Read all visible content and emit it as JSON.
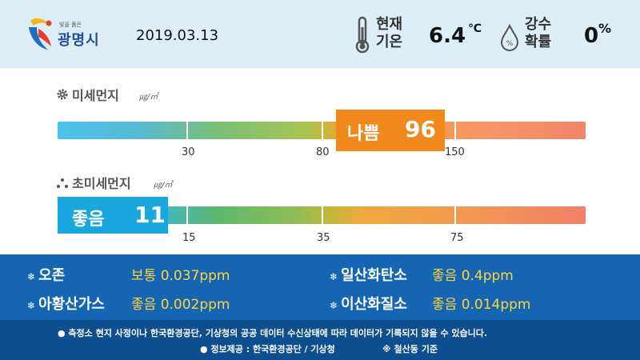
{
  "header": {
    "logo_tagline": "빛을 품은",
    "logo_name": "광명시",
    "date": "2019.03.13",
    "temperature": {
      "label_line1": "현재",
      "label_line2": "기온",
      "value": "6.4",
      "unit": "℃",
      "icon": "thermometer-icon"
    },
    "precipitation": {
      "label_line1": "강수",
      "label_line2": "확률",
      "value": "0",
      "unit": "%",
      "icon": "raindrop-percent-icon"
    }
  },
  "pm10": {
    "title": "미세먼지",
    "unit": "㎍/㎥",
    "icon": "gear-icon",
    "status": "나쁨",
    "value": "96",
    "ticks": [
      "30",
      "80",
      "150"
    ],
    "status_color": "#f08a1c"
  },
  "pm25": {
    "title": "초미세먼지",
    "unit": "㎍/㎥",
    "icon": "dots-icon",
    "status": "좋음",
    "value": "11",
    "ticks": [
      "15",
      "35",
      "75"
    ],
    "status_color": "#1aa7e0"
  },
  "pollutants": [
    {
      "name": "오존",
      "status": "보통",
      "value": "0.037ppm"
    },
    {
      "name": "일산화탄소",
      "status": "좋음",
      "value": "0.4ppm"
    },
    {
      "name": "아황산가스",
      "status": "좋음",
      "value": "0.002ppm"
    },
    {
      "name": "이산화질소",
      "status": "좋음",
      "value": "0.014ppm"
    }
  ],
  "footer": {
    "notice": "● 측정소 현지 사정이나 한국환경공단, 기상청의 공공 데이터 수신상태에 따라 데이터가 기록되지 않을 수 있습니다.",
    "source": "● 정보제공 : 한국환경공단 / 기상청",
    "station": "※ 철산동 기준"
  },
  "colors": {
    "header_bg": "#ddeef7",
    "panel_bg": "#1565b3",
    "footer_bg": "#0e4f8f",
    "value_yellow": "#ffd43b"
  }
}
